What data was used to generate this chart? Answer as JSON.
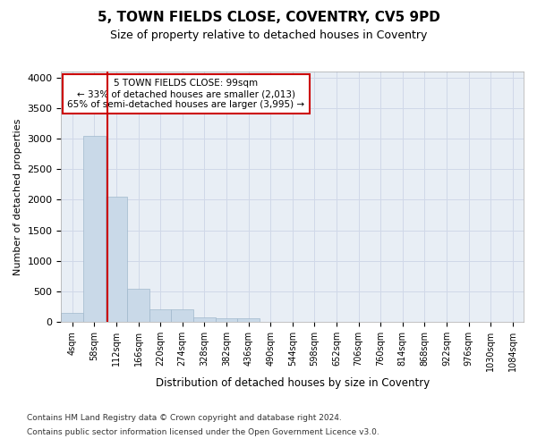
{
  "title": "5, TOWN FIELDS CLOSE, COVENTRY, CV5 9PD",
  "subtitle": "Size of property relative to detached houses in Coventry",
  "xlabel": "Distribution of detached houses by size in Coventry",
  "ylabel": "Number of detached properties",
  "bin_labels": [
    "4sqm",
    "58sqm",
    "112sqm",
    "166sqm",
    "220sqm",
    "274sqm",
    "328sqm",
    "382sqm",
    "436sqm",
    "490sqm",
    "544sqm",
    "598sqm",
    "652sqm",
    "706sqm",
    "760sqm",
    "814sqm",
    "868sqm",
    "922sqm",
    "976sqm",
    "1030sqm",
    "1084sqm"
  ],
  "bar_heights": [
    150,
    3050,
    2050,
    550,
    200,
    200,
    75,
    60,
    55,
    0,
    0,
    0,
    0,
    0,
    0,
    0,
    0,
    0,
    0,
    0,
    0
  ],
  "bar_color": "#c9d9e8",
  "bar_edge_color": "#a0b8cc",
  "property_line_x": 1.6,
  "annotation_text": "5 TOWN FIELDS CLOSE: 99sqm\n← 33% of detached houses are smaller (2,013)\n65% of semi-detached houses are larger (3,995) →",
  "annotation_box_color": "#ffffff",
  "annotation_box_edge_color": "#cc0000",
  "vline_color": "#cc0000",
  "ylim": [
    0,
    4100
  ],
  "yticks": [
    0,
    500,
    1000,
    1500,
    2000,
    2500,
    3000,
    3500,
    4000
  ],
  "footer1": "Contains HM Land Registry data © Crown copyright and database right 2024.",
  "footer2": "Contains public sector information licensed under the Open Government Licence v3.0.",
  "title_fontsize": 11,
  "subtitle_fontsize": 9,
  "background_color": "#ffffff",
  "grid_color": "#d0d8e8",
  "ax_bg_color": "#e8eef5"
}
